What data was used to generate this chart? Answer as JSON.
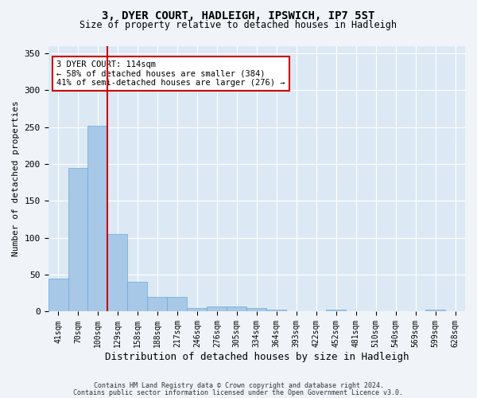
{
  "title_line1": "3, DYER COURT, HADLEIGH, IPSWICH, IP7 5ST",
  "title_line2": "Size of property relative to detached houses in Hadleigh",
  "xlabel": "Distribution of detached houses by size in Hadleigh",
  "ylabel": "Number of detached properties",
  "background_color": "#dce9f5",
  "bar_color": "#a8c8e8",
  "bar_edge_color": "#6aaad4",
  "annotation_line_color": "#cc0000",
  "footer_line1": "Contains HM Land Registry data © Crown copyright and database right 2024.",
  "footer_line2": "Contains public sector information licensed under the Open Government Licence v3.0.",
  "annotation_text": "3 DYER COURT: 114sqm\n← 58% of detached houses are smaller (384)\n41% of semi-detached houses are larger (276) →",
  "property_size": 114,
  "bin_labels": [
    "41sqm",
    "70sqm",
    "100sqm",
    "129sqm",
    "158sqm",
    "188sqm",
    "217sqm",
    "246sqm",
    "276sqm",
    "305sqm",
    "334sqm",
    "364sqm",
    "393sqm",
    "422sqm",
    "452sqm",
    "481sqm",
    "510sqm",
    "540sqm",
    "569sqm",
    "599sqm",
    "628sqm"
  ],
  "counts": [
    45,
    195,
    252,
    105,
    40,
    20,
    20,
    5,
    7,
    7,
    5,
    3,
    0,
    0,
    3,
    0,
    0,
    0,
    0,
    3,
    0
  ],
  "ylim": [
    0,
    360
  ],
  "yticks": [
    0,
    50,
    100,
    150,
    200,
    250,
    300,
    350
  ],
  "fig_bg_color": "#f0f4f8",
  "vline_x_index": 2.5
}
